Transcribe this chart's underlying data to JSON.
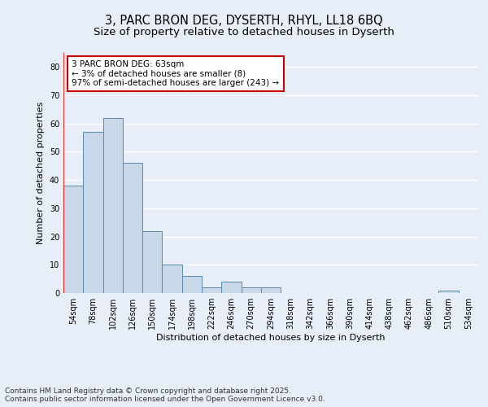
{
  "title": "3, PARC BRON DEG, DYSERTH, RHYL, LL18 6BQ",
  "subtitle": "Size of property relative to detached houses in Dyserth",
  "xlabel": "Distribution of detached houses by size in Dyserth",
  "ylabel": "Number of detached properties",
  "categories": [
    "54sqm",
    "78sqm",
    "102sqm",
    "126sqm",
    "150sqm",
    "174sqm",
    "198sqm",
    "222sqm",
    "246sqm",
    "270sqm",
    "294sqm",
    "318sqm",
    "342sqm",
    "366sqm",
    "390sqm",
    "414sqm",
    "438sqm",
    "462sqm",
    "486sqm",
    "510sqm",
    "534sqm"
  ],
  "values": [
    38,
    57,
    62,
    46,
    22,
    10,
    6,
    2,
    4,
    2,
    2,
    0,
    0,
    0,
    0,
    0,
    0,
    0,
    0,
    1,
    0
  ],
  "bar_color": "#c8d8e8",
  "bar_edge_color": "#5a8ab0",
  "background_color": "#e8eef8",
  "grid_color": "#ffffff",
  "annotation_text": "3 PARC BRON DEG: 63sqm\n← 3% of detached houses are smaller (8)\n97% of semi-detached houses are larger (243) →",
  "annotation_box_color": "#ffffff",
  "annotation_box_edge": "#cc0000",
  "ylim": [
    0,
    85
  ],
  "yticks": [
    0,
    10,
    20,
    30,
    40,
    50,
    60,
    70,
    80
  ],
  "footer": "Contains HM Land Registry data © Crown copyright and database right 2025.\nContains public sector information licensed under the Open Government Licence v3.0.",
  "title_fontsize": 10.5,
  "subtitle_fontsize": 9.5,
  "axis_label_fontsize": 8,
  "tick_fontsize": 7,
  "footer_fontsize": 6.5,
  "annotation_fontsize": 7.5
}
